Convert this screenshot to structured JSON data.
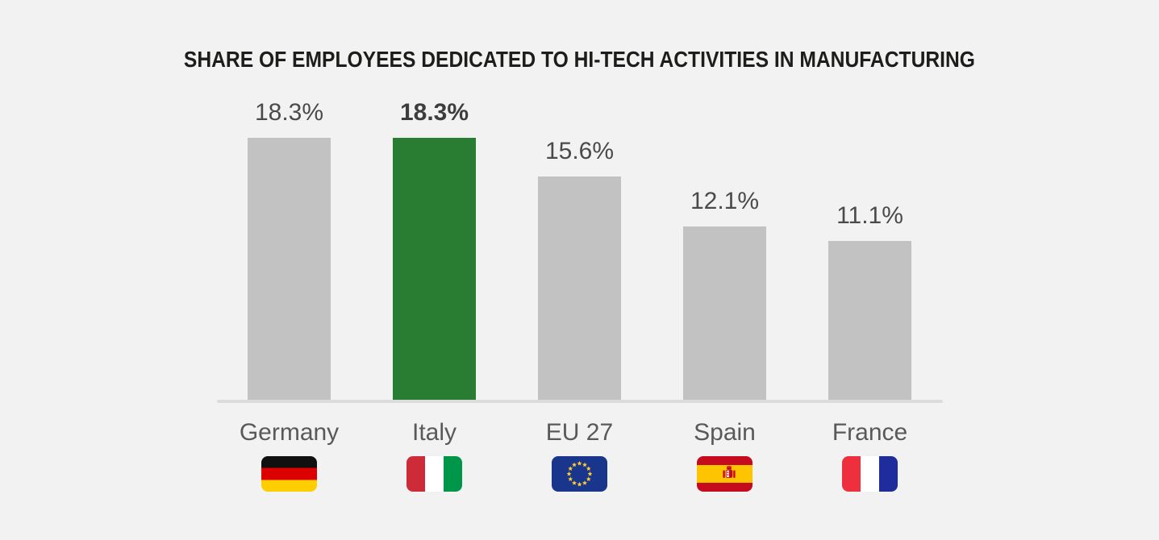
{
  "title": "SHARE OF EMPLOYEES DEDICATED TO HI-TECH ACTIVITIES IN MANUFACTURING",
  "chart_data": {
    "type": "bar",
    "title": "SHARE OF EMPLOYEES DEDICATED TO HI-TECH ACTIVITIES IN MANUFACTURING",
    "categories": [
      "Germany",
      "Italy",
      "EU 27",
      "Spain",
      "France"
    ],
    "values": [
      18.3,
      18.3,
      15.6,
      12.1,
      11.1
    ],
    "value_labels": [
      "18.3%",
      "18.3%",
      "15.6%",
      "12.1%",
      "11.1%"
    ],
    "highlight_index": 1,
    "highlight_category": "Italy",
    "orientation": "vertical",
    "ylim": [
      0,
      20
    ],
    "grid": false,
    "legend": "none",
    "colors": {
      "background": "#f2f2f2",
      "bar": "#c2c2c2",
      "highlight_bar": "#287d33",
      "value_label": "#4a4a4a",
      "value_label_bold": "#3d3d3d",
      "country_label": "#595959",
      "baseline": "#dcdcdc",
      "title": "#1d1d1b"
    },
    "flags": [
      {
        "id": "germany",
        "orientation": "horizontal",
        "stripes": [
          "#101010",
          "#dd0000",
          "#ffce00"
        ],
        "weights": [
          1,
          1,
          1
        ]
      },
      {
        "id": "italy",
        "orientation": "vertical",
        "stripes": [
          "#cd2b37",
          "#ffffff",
          "#00964a"
        ],
        "weights": [
          1,
          1,
          1
        ]
      },
      {
        "id": "eu",
        "background": "#1a368c",
        "star_color": "#ffcc33",
        "stars": 12
      },
      {
        "id": "spain",
        "orientation": "horizontal",
        "stripes": [
          "#c60b1e",
          "#ffc400",
          "#c60b1e"
        ],
        "weights": [
          1,
          2,
          1
        ],
        "emblem": true,
        "emblem_color": "#c60b1e",
        "emblem_accent": "#ffffff"
      },
      {
        "id": "france",
        "orientation": "vertical",
        "stripes": [
          "#ee2f3e",
          "#ffffff",
          "#1f2d9c"
        ],
        "weights": [
          1,
          1,
          1
        ]
      }
    ]
  }
}
